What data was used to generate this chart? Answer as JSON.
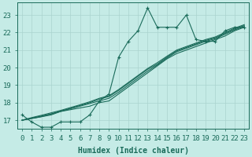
{
  "xlabel": "Humidex (Indice chaleur)",
  "ylabel": "",
  "background_color": "#c5ebe6",
  "grid_color": "#aad4ce",
  "line_color": "#1a6b5a",
  "xlim": [
    -0.5,
    23.5
  ],
  "ylim": [
    16.5,
    23.7
  ],
  "yticks": [
    17,
    18,
    19,
    20,
    21,
    22,
    23
  ],
  "xticks": [
    0,
    1,
    2,
    3,
    4,
    5,
    6,
    7,
    8,
    9,
    10,
    11,
    12,
    13,
    14,
    15,
    16,
    17,
    18,
    19,
    20,
    21,
    22,
    23
  ],
  "main_series": [
    17.3,
    16.9,
    16.6,
    16.6,
    16.9,
    16.9,
    16.9,
    17.3,
    18.1,
    18.5,
    20.6,
    21.5,
    22.1,
    23.4,
    22.3,
    22.3,
    22.3,
    23.0,
    21.6,
    21.5,
    21.5,
    22.1,
    22.3,
    22.3
  ],
  "linear_series": [
    [
      17.0,
      17.1,
      17.2,
      17.3,
      17.5,
      17.6,
      17.7,
      17.8,
      18.0,
      18.1,
      18.5,
      18.9,
      19.3,
      19.7,
      20.1,
      20.5,
      20.8,
      21.0,
      21.2,
      21.4,
      21.6,
      21.8,
      22.1,
      22.3
    ],
    [
      17.0,
      17.1,
      17.2,
      17.35,
      17.5,
      17.65,
      17.8,
      17.95,
      18.1,
      18.25,
      18.6,
      19.0,
      19.4,
      19.8,
      20.15,
      20.55,
      20.9,
      21.1,
      21.3,
      21.5,
      21.65,
      21.9,
      22.15,
      22.35
    ],
    [
      17.0,
      17.12,
      17.24,
      17.36,
      17.52,
      17.68,
      17.84,
      18.0,
      18.2,
      18.35,
      18.7,
      19.1,
      19.5,
      19.9,
      20.2,
      20.6,
      20.95,
      21.15,
      21.35,
      21.55,
      21.7,
      21.95,
      22.2,
      22.4
    ],
    [
      17.0,
      17.15,
      17.28,
      17.42,
      17.56,
      17.72,
      17.88,
      18.05,
      18.25,
      18.4,
      18.75,
      19.15,
      19.55,
      19.95,
      20.28,
      20.65,
      21.0,
      21.2,
      21.4,
      21.6,
      21.75,
      22.0,
      22.25,
      22.45
    ]
  ],
  "fontsize_axis": 6.5,
  "fontsize_xlabel": 7
}
